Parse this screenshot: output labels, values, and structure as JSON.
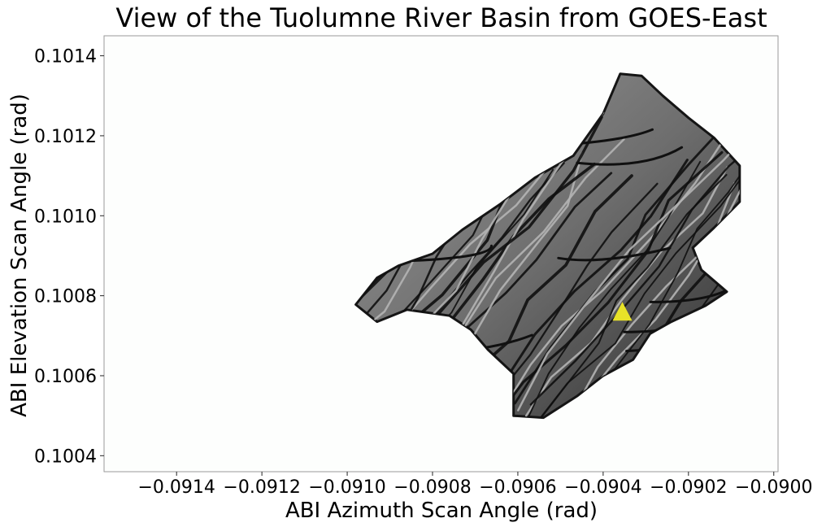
{
  "chart_data": {
    "type": "map",
    "title": "View of the Tuolumne River Basin from GOES-East",
    "xlabel": "ABI Azimuth Scan Angle (rad)",
    "ylabel": "ABI Elevation Scan Angle (rad)",
    "xlim": [
      -0.09157,
      -0.08999
    ],
    "ylim": [
      0.10036,
      0.10145
    ],
    "x_ticks": [
      -0.0914,
      -0.0912,
      -0.091,
      -0.0908,
      -0.0906,
      -0.0904,
      -0.0902,
      -0.09
    ],
    "x_tick_labels": [
      "−0.0914",
      "−0.0912",
      "−0.0910",
      "−0.0908",
      "−0.0906",
      "−0.0904",
      "−0.0902",
      "−0.0900"
    ],
    "y_ticks": [
      0.1004,
      0.1006,
      0.1008,
      0.101,
      0.1012,
      0.1014
    ],
    "y_tick_labels": [
      "0.1004",
      "0.1006",
      "0.1008",
      "0.1010",
      "0.1012",
      "0.1014"
    ],
    "basin_outline": [
      [
        -0.09098,
        0.100778
      ],
      [
        -0.09093,
        0.100845
      ],
      [
        -0.09088,
        0.100875
      ],
      [
        -0.0908,
        0.100905
      ],
      [
        -0.09073,
        0.100965
      ],
      [
        -0.09064,
        0.10103
      ],
      [
        -0.09056,
        0.101095
      ],
      [
        -0.09047,
        0.10115
      ],
      [
        -0.0904,
        0.101255
      ],
      [
        -0.09036,
        0.101355
      ],
      [
        -0.09031,
        0.10135
      ],
      [
        -0.09026,
        0.1013
      ],
      [
        -0.0902,
        0.101245
      ],
      [
        -0.09014,
        0.101195
      ],
      [
        -0.09008,
        0.101125
      ],
      [
        -0.09008,
        0.101035
      ],
      [
        -0.09014,
        0.10097
      ],
      [
        -0.09019,
        0.10092
      ],
      [
        -0.09017,
        0.100865
      ],
      [
        -0.09011,
        0.10081
      ],
      [
        -0.09016,
        0.100775
      ],
      [
        -0.09024,
        0.100735
      ],
      [
        -0.09029,
        0.100705
      ],
      [
        -0.09033,
        0.10064
      ],
      [
        -0.0904,
        0.1006
      ],
      [
        -0.09046,
        0.10055
      ],
      [
        -0.09054,
        0.100495
      ],
      [
        -0.09061,
        0.1005
      ],
      [
        -0.09061,
        0.100605
      ],
      [
        -0.09067,
        0.100665
      ],
      [
        -0.09071,
        0.100715
      ],
      [
        -0.09076,
        0.10075
      ],
      [
        -0.09086,
        0.100765
      ],
      [
        -0.09093,
        0.100735
      ]
    ],
    "marker": {
      "shape": "triangle",
      "x": -0.090355,
      "y": 0.100758,
      "color": "#e8e228"
    },
    "colors": {
      "terrain": "#6e6e6e",
      "ridges": "#111111",
      "frame": "#9a9a9a"
    }
  }
}
